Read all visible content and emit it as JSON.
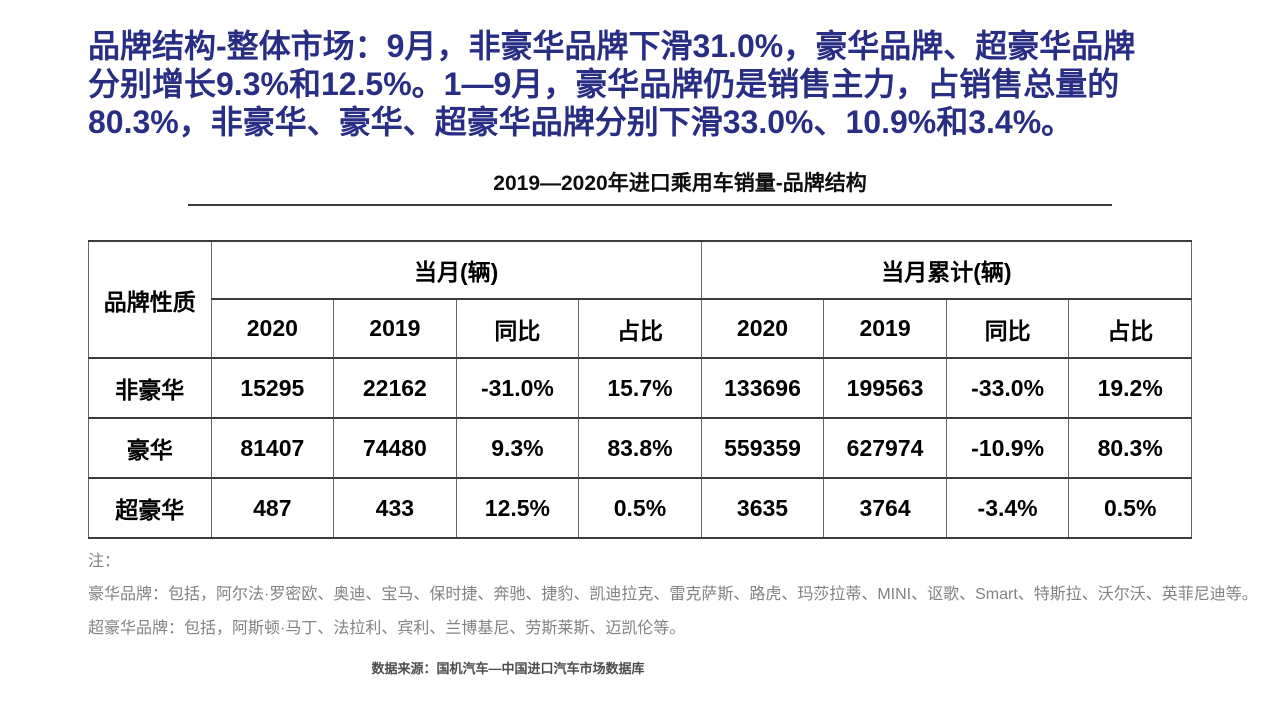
{
  "slide": {
    "background": "#ffffff",
    "title": {
      "color": "#292e85",
      "lines": [
        "品牌结构-整体市场：9月，非豪华品牌下滑31.0%，豪华品牌、超豪华品牌",
        "分别增长9.3%和12.5%。1—9月，豪华品牌仍是销售主力，占销售总量的",
        "80.3%，非豪华、豪华、超豪华品牌分别下滑33.0%、10.9%和3.4%。"
      ]
    }
  },
  "table": {
    "caption": "2019—2020年进口乘用车销量-品牌结构",
    "corner_header": "品牌性质",
    "col_groups": [
      "当月(辆)",
      "当月累计(辆)"
    ],
    "sub_headers": [
      "2020",
      "2019",
      "同比",
      "占比",
      "2020",
      "2019",
      "同比",
      "占比"
    ],
    "rows": [
      {
        "label": "非豪华",
        "values": [
          "15295",
          "22162",
          "-31.0%",
          "15.7%",
          "133696",
          "199563",
          "-33.0%",
          "19.2%"
        ]
      },
      {
        "label": "豪华",
        "values": [
          "81407",
          "74480",
          "9.3%",
          "83.8%",
          "559359",
          "627974",
          "-10.9%",
          "80.3%"
        ]
      },
      {
        "label": "超豪华",
        "values": [
          "487",
          "433",
          "12.5%",
          "0.5%",
          "3635",
          "3764",
          "-3.4%",
          "0.5%"
        ]
      }
    ],
    "border_color": "#3d3d3d",
    "text_color": "#000000"
  },
  "notes": {
    "label": "注：",
    "luxury": "豪华品牌：包括，阿尔法·罗密欧、奥迪、宝马、保时捷、奔驰、捷豹、凯迪拉克、雷克萨斯、路虎、玛莎拉蒂、MINI、讴歌、Smart、特斯拉、沃尔沃、英菲尼迪等。",
    "super_luxury": "超豪华品牌：包括，阿斯顿·马丁、法拉利、宾利、兰博基尼、劳斯莱斯、迈凯伦等。",
    "text_color": "#828282"
  },
  "source": {
    "text": "数据来源：国机汽车—中国进口汽车市场数据库",
    "text_color": "#4d4d4d"
  }
}
